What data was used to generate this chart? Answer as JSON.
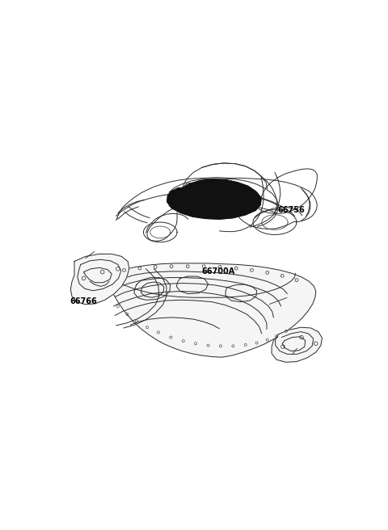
{
  "background_color": "#ffffff",
  "fig_width": 4.8,
  "fig_height": 6.56,
  "dpi": 100,
  "line_color": "#2a2a2a",
  "lw": 0.7,
  "labels": {
    "66766": [
      0.115,
      0.582
    ],
    "66700A": [
      0.565,
      0.51
    ],
    "66756": [
      0.81,
      0.358
    ]
  },
  "label_fontsize": 7.0
}
